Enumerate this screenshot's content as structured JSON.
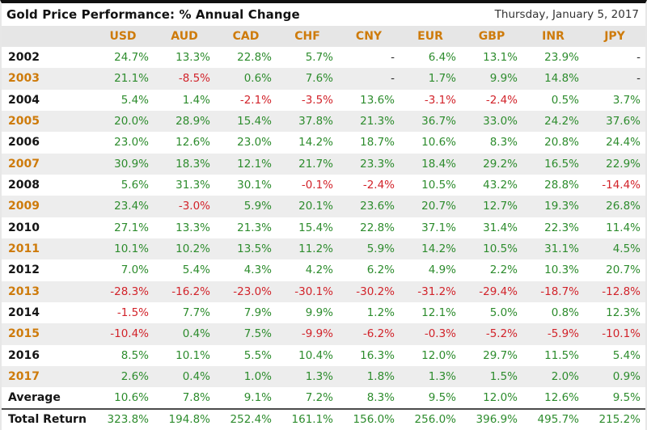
{
  "colors": {
    "positive_green": "#2D8C2D",
    "negative_red": "#D2232A",
    "accent_orange": "#CE7B0B",
    "stripe_gray": "#EDEDED",
    "header_bg": "#E6E6E6"
  },
  "chart_data": {
    "type": "table",
    "title": "Gold Price Performance: % Annual Change",
    "date": "Thursday, January 5, 2017",
    "columns": [
      "USD",
      "AUD",
      "CAD",
      "CHF",
      "CNY",
      "EUR",
      "GBP",
      "INR",
      "JPY"
    ],
    "rows": [
      {
        "label": "2002",
        "values": [
          "24.7%",
          "13.3%",
          "22.8%",
          "5.7%",
          "-",
          "6.4%",
          "13.1%",
          "23.9%",
          "-"
        ]
      },
      {
        "label": "2003",
        "values": [
          "21.1%",
          "-8.5%",
          "0.6%",
          "7.6%",
          "-",
          "1.7%",
          "9.9%",
          "14.8%",
          "-"
        ]
      },
      {
        "label": "2004",
        "values": [
          "5.4%",
          "1.4%",
          "-2.1%",
          "-3.5%",
          "13.6%",
          "-3.1%",
          "-2.4%",
          "0.5%",
          "3.7%"
        ]
      },
      {
        "label": "2005",
        "values": [
          "20.0%",
          "28.9%",
          "15.4%",
          "37.8%",
          "21.3%",
          "36.7%",
          "33.0%",
          "24.2%",
          "37.6%"
        ]
      },
      {
        "label": "2006",
        "values": [
          "23.0%",
          "12.6%",
          "23.0%",
          "14.2%",
          "18.7%",
          "10.6%",
          "8.3%",
          "20.8%",
          "24.4%"
        ]
      },
      {
        "label": "2007",
        "values": [
          "30.9%",
          "18.3%",
          "12.1%",
          "21.7%",
          "23.3%",
          "18.4%",
          "29.2%",
          "16.5%",
          "22.9%"
        ]
      },
      {
        "label": "2008",
        "values": [
          "5.6%",
          "31.3%",
          "30.1%",
          "-0.1%",
          "-2.4%",
          "10.5%",
          "43.2%",
          "28.8%",
          "-14.4%"
        ]
      },
      {
        "label": "2009",
        "values": [
          "23.4%",
          "-3.0%",
          "5.9%",
          "20.1%",
          "23.6%",
          "20.7%",
          "12.7%",
          "19.3%",
          "26.8%"
        ]
      },
      {
        "label": "2010",
        "values": [
          "27.1%",
          "13.3%",
          "21.3%",
          "15.4%",
          "22.8%",
          "37.1%",
          "31.4%",
          "22.3%",
          "11.4%"
        ]
      },
      {
        "label": "2011",
        "values": [
          "10.1%",
          "10.2%",
          "13.5%",
          "11.2%",
          "5.9%",
          "14.2%",
          "10.5%",
          "31.1%",
          "4.5%"
        ]
      },
      {
        "label": "2012",
        "values": [
          "7.0%",
          "5.4%",
          "4.3%",
          "4.2%",
          "6.2%",
          "4.9%",
          "2.2%",
          "10.3%",
          "20.7%"
        ]
      },
      {
        "label": "2013",
        "values": [
          "-28.3%",
          "-16.2%",
          "-23.0%",
          "-30.1%",
          "-30.2%",
          "-31.2%",
          "-29.4%",
          "-18.7%",
          "-12.8%"
        ]
      },
      {
        "label": "2014",
        "values": [
          "-1.5%",
          "7.7%",
          "7.9%",
          "9.9%",
          "1.2%",
          "12.1%",
          "5.0%",
          "0.8%",
          "12.3%"
        ]
      },
      {
        "label": "2015",
        "values": [
          "-10.4%",
          "0.4%",
          "7.5%",
          "-9.9%",
          "-6.2%",
          "-0.3%",
          "-5.2%",
          "-5.9%",
          "-10.1%"
        ]
      },
      {
        "label": "2016",
        "values": [
          "8.5%",
          "10.1%",
          "5.5%",
          "10.4%",
          "16.3%",
          "12.0%",
          "29.7%",
          "11.5%",
          "5.4%"
        ]
      },
      {
        "label": "2017",
        "values": [
          "2.6%",
          "0.4%",
          "1.0%",
          "1.3%",
          "1.8%",
          "1.3%",
          "1.5%",
          "2.0%",
          "0.9%"
        ]
      },
      {
        "label": "Average",
        "values": [
          "10.6%",
          "7.8%",
          "9.1%",
          "7.2%",
          "8.3%",
          "9.5%",
          "12.0%",
          "12.6%",
          "9.5%"
        ]
      },
      {
        "label": "Total Return",
        "values": [
          "323.8%",
          "194.8%",
          "252.4%",
          "161.1%",
          "156.0%",
          "256.0%",
          "396.9%",
          "495.7%",
          "215.2%"
        ]
      }
    ]
  }
}
